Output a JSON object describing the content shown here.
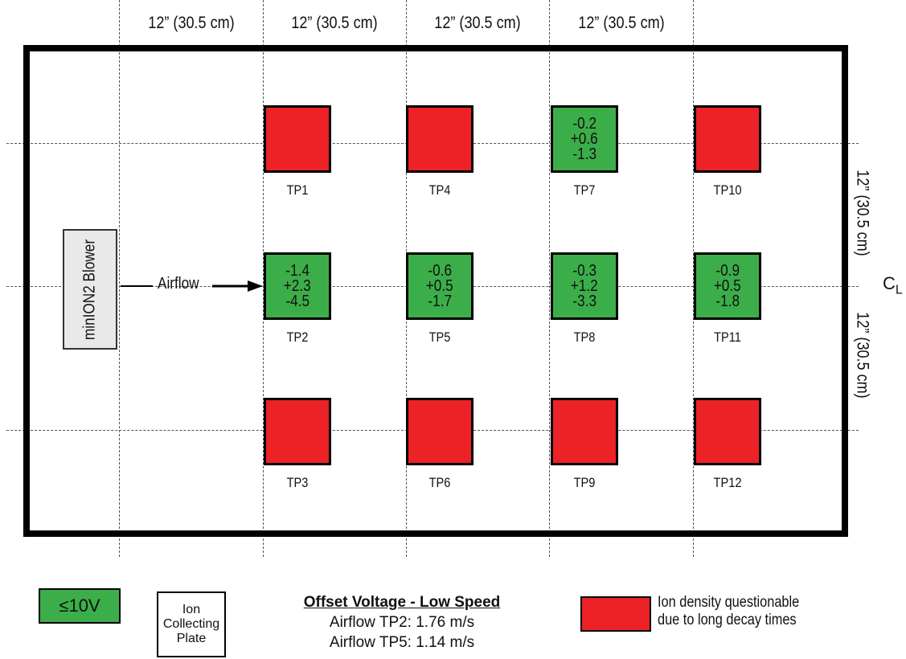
{
  "dimensions": {
    "top": [
      "12” (30.5 cm)",
      "12” (30.5 cm)",
      "12” (30.5 cm)",
      "12” (30.5 cm)"
    ],
    "right": [
      "12” (30.5 cm)",
      "12” (30.5 cm)"
    ]
  },
  "centerline": {
    "c": "C",
    "sub": "L"
  },
  "blower_label": "minION2 Blower",
  "airflow_label": "Airflow",
  "test_points": [
    {
      "label": "TP1",
      "status": "red",
      "values": []
    },
    {
      "label": "TP2",
      "status": "green",
      "values": [
        "-1.4",
        "+2.3",
        "-4.5"
      ]
    },
    {
      "label": "TP3",
      "status": "red",
      "values": []
    },
    {
      "label": "TP4",
      "status": "red",
      "values": []
    },
    {
      "label": "TP5",
      "status": "green",
      "values": [
        "-0.6",
        "+0.5",
        "-1.7"
      ]
    },
    {
      "label": "TP6",
      "status": "red",
      "values": []
    },
    {
      "label": "TP7",
      "status": "green",
      "values": [
        "-0.2",
        "+0.6",
        "-1.3"
      ]
    },
    {
      "label": "TP8",
      "status": "green",
      "values": [
        "-0.3",
        "+1.2",
        "-3.3"
      ]
    },
    {
      "label": "TP9",
      "status": "red",
      "values": []
    },
    {
      "label": "TP10",
      "status": "red",
      "values": []
    },
    {
      "label": "TP11",
      "status": "green",
      "values": [
        "-0.9",
        "+0.5",
        "-1.8"
      ]
    },
    {
      "label": "TP12",
      "status": "red",
      "values": []
    }
  ],
  "legend": {
    "green_label": "≤10V",
    "plate_lines": [
      "Ion",
      "Collecting",
      "Plate"
    ],
    "offset_title": "Offset Voltage - Low Speed",
    "offset_lines": [
      "Airflow TP2: 1.76 m/s",
      "Airflow TP5: 1.14 m/s"
    ],
    "red_text": [
      "Ion density questionable",
      "due to long decay times"
    ]
  },
  "colors": {
    "green": "#3cae49",
    "red": "#ec2227"
  }
}
